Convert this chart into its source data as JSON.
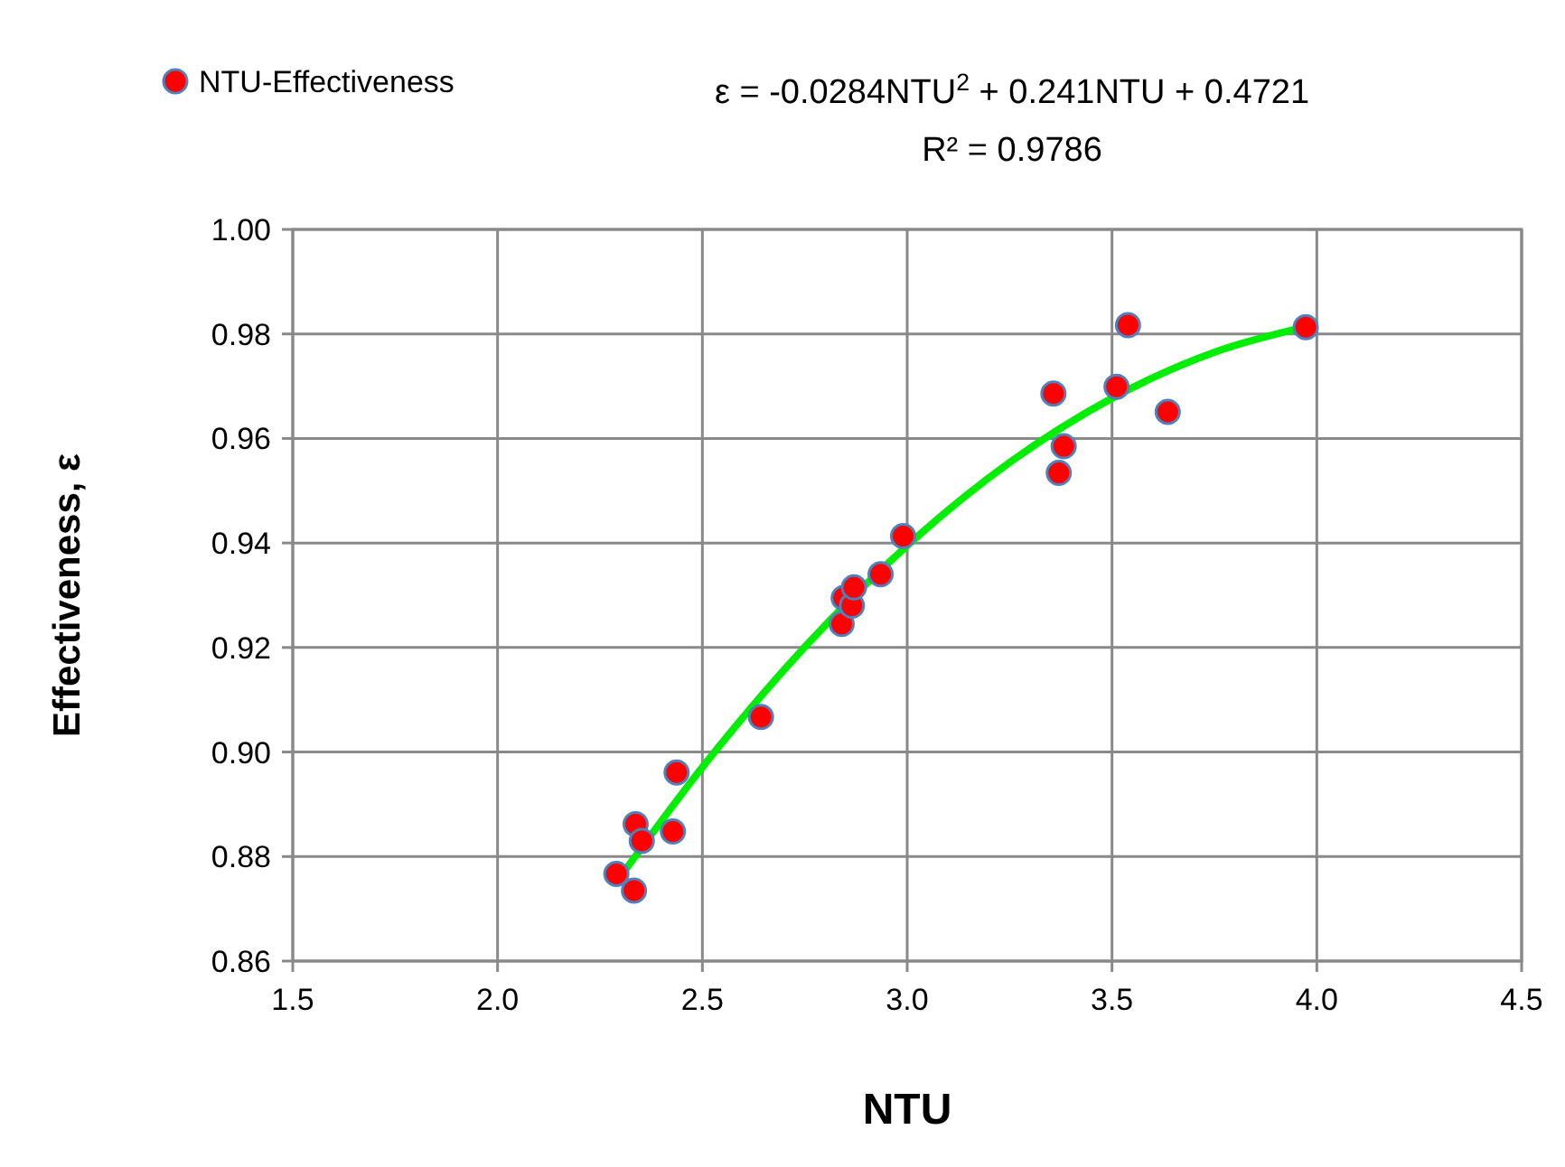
{
  "chart_data": {
    "type": "scatter",
    "xlabel": "NTU",
    "ylabel": "Effectiveness, ε",
    "annotations": [
      "ε = -0.0284NTU$^{2}$ + 0.241NTU + 0.4721",
      "R² = 0.9786"
    ],
    "xlim": [
      1.5,
      4.5
    ],
    "xticks": [
      {
        "value": 1.5,
        "label": "1.5"
      },
      {
        "value": 2,
        "label": "2.0"
      },
      {
        "value": 2.5,
        "label": "2.5"
      },
      {
        "value": 3,
        "label": "3.0"
      },
      {
        "value": 3.5,
        "label": "3.5"
      },
      {
        "value": 4,
        "label": "4.0"
      },
      {
        "value": 4.5,
        "label": "4.5"
      }
    ],
    "ylim": [
      0.86,
      1
    ],
    "yticks": [
      {
        "value": 0.86,
        "label": "0.86"
      },
      {
        "value": 0.88,
        "label": "0.88"
      },
      {
        "value": 0.9,
        "label": "0.90"
      },
      {
        "value": 0.92,
        "label": "0.92"
      },
      {
        "value": 0.94,
        "label": "0.94"
      },
      {
        "value": 0.96,
        "label": "0.96"
      },
      {
        "value": 0.98,
        "label": "0.98"
      },
      {
        "value": 1,
        "label": "1.00"
      }
    ],
    "grid": true,
    "legend": "top left",
    "series": [
      {
        "name": "NTU-Effectiveness",
        "marker": "circle",
        "color": "#ff0000",
        "x": [
          2.29,
          2.333,
          2.337,
          2.352,
          2.428,
          2.437,
          2.643,
          2.84,
          2.845,
          2.865,
          2.87,
          2.935,
          2.99,
          3.357,
          3.37,
          3.382,
          3.511,
          3.539,
          3.636,
          3.973
        ],
        "values": [
          0.8767,
          0.8735,
          0.8862,
          0.883,
          0.8848,
          0.8961,
          0.9067,
          0.9245,
          0.9295,
          0.928,
          0.9315,
          0.934,
          0.9413,
          0.9686,
          0.9534,
          0.9585,
          0.9699,
          0.9817,
          0.9651,
          0.9813
        ]
      },
      {
        "type": "line",
        "color": "#00ee00",
        "x": [
          2.29,
          2.5,
          2.75,
          3.0,
          3.25,
          3.5,
          3.75,
          3.97
        ],
        "values": [
          0.8751,
          0.8971,
          0.9201,
          0.9395,
          0.9554,
          0.9677,
          0.9765,
          0.9813
        ]
      }
    ]
  }
}
